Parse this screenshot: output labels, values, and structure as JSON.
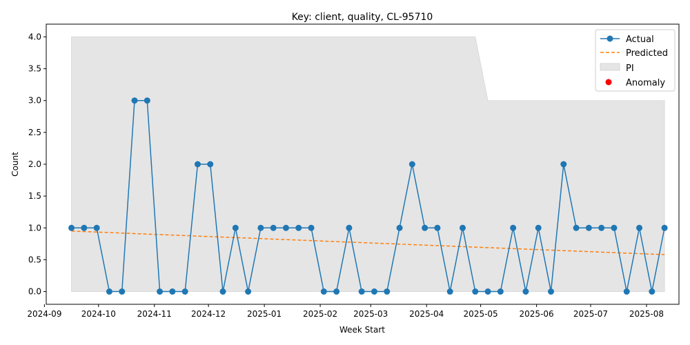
{
  "chart_data": {
    "type": "line",
    "title": "Key: client, quality, CL-95710",
    "xlabel": "Week Start",
    "ylabel": "Count",
    "ylim": [
      -0.2,
      4.2
    ],
    "xlim": [
      "2024-09-02",
      "2025-08-19"
    ],
    "grid": false,
    "legend_position": "top-right",
    "x_ticks": [
      "2024-09",
      "2024-10",
      "2024-11",
      "2024-12",
      "2025-01",
      "2025-02",
      "2025-03",
      "2025-04",
      "2025-05",
      "2025-06",
      "2025-07",
      "2025-08"
    ],
    "y_ticks": [
      "0.0",
      "0.5",
      "1.0",
      "1.5",
      "2.0",
      "2.5",
      "3.0",
      "3.5",
      "4.0"
    ],
    "x": [
      "2024-09-16",
      "2024-09-23",
      "2024-09-30",
      "2024-10-07",
      "2024-10-14",
      "2024-10-21",
      "2024-10-28",
      "2024-11-04",
      "2024-11-11",
      "2024-11-18",
      "2024-11-25",
      "2024-12-02",
      "2024-12-09",
      "2024-12-16",
      "2024-12-23",
      "2024-12-30",
      "2025-01-06",
      "2025-01-13",
      "2025-01-20",
      "2025-01-27",
      "2025-02-03",
      "2025-02-10",
      "2025-02-17",
      "2025-02-24",
      "2025-03-03",
      "2025-03-10",
      "2025-03-17",
      "2025-03-24",
      "2025-03-31",
      "2025-04-07",
      "2025-04-14",
      "2025-04-21",
      "2025-04-28",
      "2025-05-05",
      "2025-05-12",
      "2025-05-19",
      "2025-05-26",
      "2025-06-02",
      "2025-06-09",
      "2025-06-16",
      "2025-06-23",
      "2025-06-30",
      "2025-07-07",
      "2025-07-14",
      "2025-07-21",
      "2025-07-28",
      "2025-08-04",
      "2025-08-11"
    ],
    "series": [
      {
        "name": "Actual",
        "color": "#1f77b4",
        "style": "solid-line-with-markers",
        "values": [
          1,
          1,
          1,
          0,
          0,
          3,
          3,
          0,
          0,
          0,
          2,
          2,
          0,
          1,
          0,
          1,
          1,
          1,
          1,
          1,
          0,
          0,
          1,
          0,
          0,
          0,
          1,
          2,
          1,
          1,
          0,
          1,
          0,
          0,
          0,
          1,
          0,
          1,
          0,
          2,
          1,
          1,
          1,
          1,
          0,
          1,
          0,
          1
        ]
      },
      {
        "name": "Predicted",
        "color": "#ff7f0e",
        "style": "dashed-line",
        "start": 0.95,
        "end": 0.58
      }
    ],
    "interval": {
      "name": "PI",
      "color": "#e5e5e5",
      "lower": 0,
      "upper_segments": [
        {
          "from": "2024-09-16",
          "to": "2025-04-28",
          "value": 4
        },
        {
          "from": "2025-05-05",
          "to": "2025-08-11",
          "value": 3
        }
      ]
    },
    "anomaly": {
      "name": "Anomaly",
      "color": "#ff0000",
      "points": []
    }
  }
}
